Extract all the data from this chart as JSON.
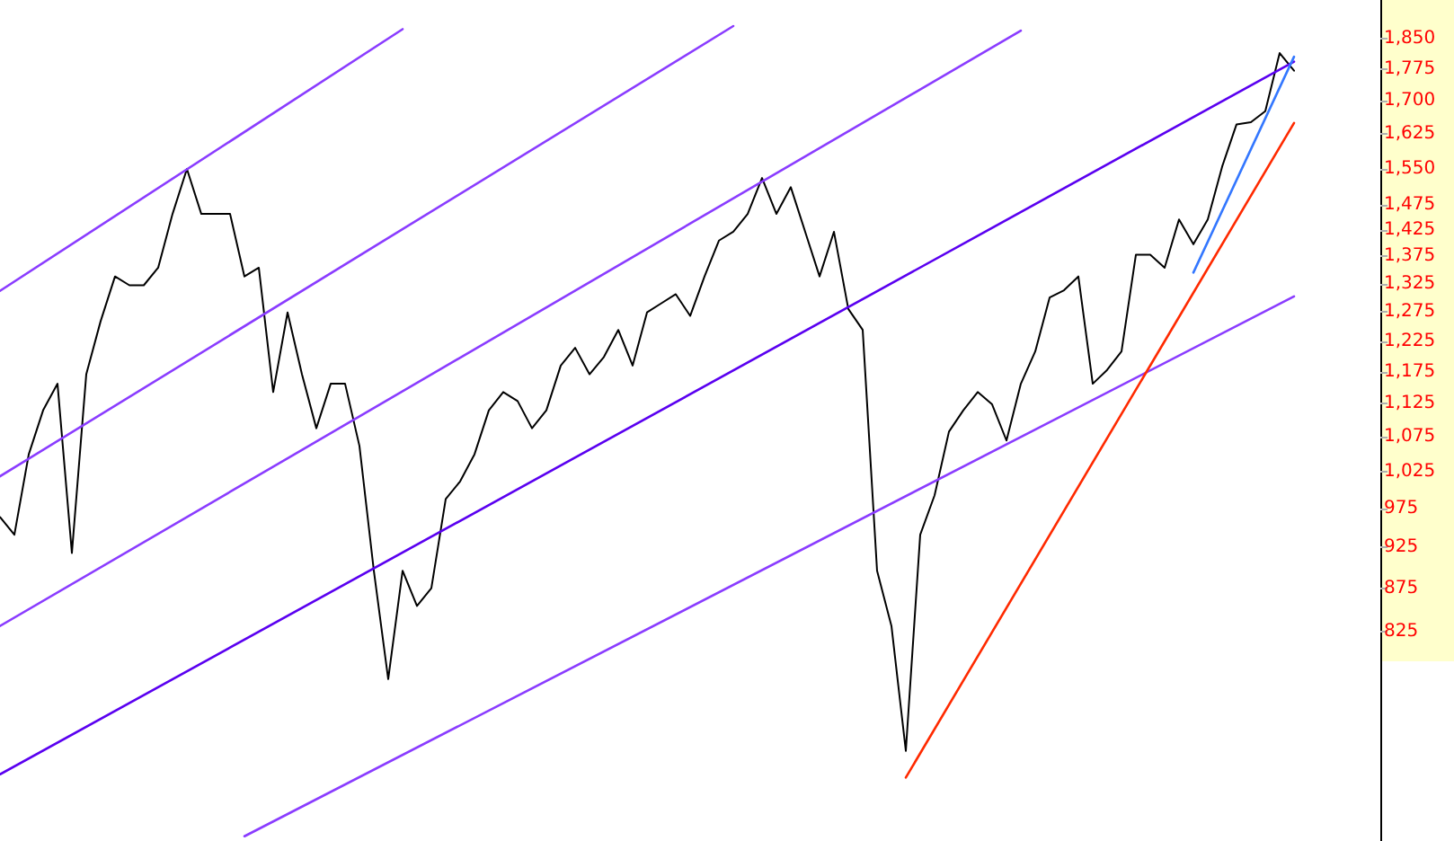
{
  "chart_data": {
    "type": "line",
    "categories": [
      null,
      null,
      null,
      null,
      null,
      null,
      null,
      null,
      null,
      null,
      null,
      null,
      null,
      null,
      null,
      null,
      null,
      null,
      null,
      null,
      null,
      null,
      null,
      null,
      null,
      null,
      null,
      null,
      null,
      null,
      null,
      null,
      null,
      null,
      null,
      null,
      null,
      null,
      null,
      null,
      null,
      null,
      null,
      null,
      null,
      null,
      null,
      null,
      null,
      null,
      null,
      null,
      null,
      null,
      null,
      null,
      null,
      null,
      null,
      null,
      null,
      null,
      null,
      null,
      null,
      null,
      null,
      null,
      null,
      null,
      null,
      null,
      null,
      null,
      null,
      null,
      null,
      null,
      null,
      null,
      null,
      null,
      null,
      null,
      null,
      null,
      null,
      null,
      null,
      null,
      null
    ],
    "series": [
      {
        "color": "#000000",
        "values": [
          964,
          941,
          1050,
          1115,
          1156,
          918,
          1171,
          1259,
          1338,
          1322,
          1322,
          1354,
          1457,
          1549,
          1457,
          1457,
          1457,
          1338,
          1354,
          1143,
          1274,
          1171,
          1088,
          1156,
          1156,
          1062,
          896,
          773,
          896,
          854,
          875,
          988,
          1012,
          1050,
          1115,
          1143,
          1129,
          1088,
          1115,
          1185,
          1214,
          1171,
          1199,
          1244,
          1185,
          1274,
          1290,
          1306,
          1268,
          1338,
          1405,
          1422,
          1457,
          1530,
          1457,
          1511,
          1422,
          1338,
          1422,
          1280,
          1244,
          896,
          831,
          701,
          941,
          993,
          1083,
          1115,
          1143,
          1124,
          1070,
          1156,
          1208,
          1300,
          1313,
          1338,
          1156,
          1178,
          1208,
          1378,
          1378,
          1354,
          1446,
          1398,
          1446,
          1554,
          1646,
          1651,
          1676,
          1814,
          1771
        ]
      },
      {
        "color": "#8a3cff",
        "values": [
          1312,
          null,
          null,
          null,
          null,
          null,
          null,
          null,
          null,
          null,
          null,
          null,
          null,
          null,
          null,
          null,
          null,
          null,
          null,
          null,
          null,
          null,
          null,
          null,
          null,
          null,
          null,
          null,
          1874,
          null,
          null,
          null,
          null,
          null,
          null,
          null,
          null,
          null,
          null,
          null,
          null,
          null,
          null,
          null,
          null,
          null,
          null,
          null,
          null,
          null,
          null,
          null,
          null,
          null,
          null,
          null,
          null,
          null,
          null,
          null,
          null,
          null,
          null,
          null,
          null,
          null,
          null,
          null,
          null,
          null,
          null,
          null,
          null,
          null,
          null,
          null,
          null,
          null,
          null,
          null,
          null,
          null,
          null,
          null,
          null,
          null,
          null,
          null,
          null,
          null,
          null
        ]
      },
      {
        "color": "#8a3cff",
        "values": [
          1019,
          null,
          null,
          null,
          null,
          null,
          null,
          null,
          null,
          null,
          null,
          null,
          null,
          null,
          null,
          null,
          null,
          null,
          null,
          null,
          null,
          null,
          null,
          null,
          null,
          null,
          null,
          null,
          null,
          null,
          null,
          null,
          null,
          null,
          null,
          null,
          null,
          null,
          null,
          null,
          null,
          null,
          null,
          null,
          null,
          null,
          null,
          null,
          null,
          null,
          null,
          1882,
          null,
          null,
          null,
          null,
          null,
          null,
          null,
          null,
          null,
          null,
          null,
          null,
          null,
          null,
          null,
          null,
          null,
          null,
          null,
          null,
          null,
          null,
          null,
          null,
          null,
          null,
          null,
          null,
          null,
          null,
          null,
          null,
          null,
          null,
          null,
          null,
          null,
          null,
          null
        ]
      },
      {
        "color": "#8a3cff",
        "values": [
          831,
          null,
          null,
          null,
          null,
          null,
          null,
          null,
          null,
          null,
          null,
          null,
          null,
          null,
          null,
          null,
          null,
          null,
          null,
          null,
          null,
          null,
          null,
          null,
          null,
          null,
          null,
          null,
          null,
          null,
          null,
          null,
          null,
          null,
          null,
          null,
          null,
          null,
          null,
          null,
          null,
          null,
          null,
          null,
          null,
          null,
          null,
          null,
          null,
          null,
          null,
          null,
          null,
          null,
          null,
          null,
          null,
          null,
          null,
          null,
          null,
          null,
          null,
          null,
          null,
          null,
          null,
          null,
          null,
          null,
          null,
          1870,
          null,
          null,
          null,
          null,
          null,
          null,
          null,
          null,
          null,
          null,
          null,
          null,
          null,
          null,
          null,
          null,
          null,
          null,
          null
        ]
      },
      {
        "color": "#5a00f0",
        "values": [
          679,
          null,
          null,
          null,
          null,
          null,
          null,
          null,
          null,
          null,
          null,
          null,
          null,
          null,
          null,
          null,
          null,
          null,
          null,
          null,
          null,
          null,
          null,
          null,
          null,
          null,
          null,
          null,
          null,
          null,
          null,
          null,
          null,
          null,
          null,
          null,
          null,
          null,
          null,
          null,
          null,
          null,
          null,
          null,
          null,
          null,
          null,
          null,
          null,
          null,
          null,
          null,
          null,
          null,
          null,
          null,
          null,
          null,
          null,
          null,
          null,
          null,
          null,
          null,
          null,
          null,
          null,
          null,
          null,
          null,
          null,
          null,
          null,
          null,
          null,
          null,
          null,
          null,
          null,
          null,
          null,
          null,
          null,
          null,
          null,
          null,
          null,
          null,
          null,
          null,
          1793
        ]
      },
      {
        "color": "#8a3cff",
        "values": [
          null,
          null,
          null,
          null,
          null,
          null,
          null,
          null,
          null,
          null,
          null,
          null,
          null,
          null,
          null,
          null,
          null,
          624,
          null,
          null,
          null,
          null,
          null,
          null,
          null,
          null,
          null,
          null,
          null,
          null,
          null,
          null,
          null,
          null,
          null,
          null,
          null,
          null,
          null,
          null,
          null,
          null,
          null,
          null,
          null,
          null,
          null,
          null,
          null,
          null,
          null,
          null,
          null,
          null,
          null,
          null,
          null,
          null,
          null,
          null,
          null,
          null,
          null,
          null,
          null,
          null,
          null,
          null,
          null,
          null,
          null,
          null,
          null,
          null,
          null,
          null,
          null,
          null,
          null,
          null,
          null,
          null,
          null,
          null,
          null,
          null,
          null,
          null,
          null,
          null,
          1302
        ]
      },
      {
        "color": "#ff2a00",
        "values": [
          null,
          null,
          null,
          null,
          null,
          null,
          null,
          null,
          null,
          null,
          null,
          null,
          null,
          null,
          null,
          null,
          null,
          null,
          null,
          null,
          null,
          null,
          null,
          null,
          null,
          null,
          null,
          null,
          null,
          null,
          null,
          null,
          null,
          null,
          null,
          null,
          null,
          null,
          null,
          null,
          null,
          null,
          null,
          null,
          null,
          null,
          null,
          null,
          null,
          null,
          null,
          null,
          null,
          null,
          null,
          null,
          null,
          null,
          null,
          null,
          null,
          null,
          null,
          676,
          null,
          null,
          null,
          null,
          null,
          null,
          null,
          null,
          null,
          null,
          null,
          null,
          null,
          null,
          null,
          null,
          null,
          null,
          null,
          null,
          null,
          null,
          null,
          null,
          null,
          null,
          1649
        ]
      },
      {
        "color": "#3377ff",
        "values": [
          null,
          null,
          null,
          null,
          null,
          null,
          null,
          null,
          null,
          null,
          null,
          null,
          null,
          null,
          null,
          null,
          null,
          null,
          null,
          null,
          null,
          null,
          null,
          null,
          null,
          null,
          null,
          null,
          null,
          null,
          null,
          null,
          null,
          null,
          null,
          null,
          null,
          null,
          null,
          null,
          null,
          null,
          null,
          null,
          null,
          null,
          null,
          null,
          null,
          null,
          null,
          null,
          null,
          null,
          null,
          null,
          null,
          null,
          null,
          null,
          null,
          null,
          null,
          null,
          null,
          null,
          null,
          null,
          null,
          null,
          null,
          null,
          null,
          null,
          null,
          null,
          null,
          null,
          null,
          null,
          null,
          null,
          null,
          1345,
          null,
          null,
          null,
          null,
          null,
          null,
          1805
        ]
      }
    ],
    "log": true,
    "ylim": [
      620,
      1950
    ],
    "yticks": [
      {
        "value": 1850,
        "label": "1,850"
      },
      {
        "value": 1775,
        "label": "1,775"
      },
      {
        "value": 1700,
        "label": "1,700"
      },
      {
        "value": 1625,
        "label": "1,625"
      },
      {
        "value": 1550,
        "label": "1,550"
      },
      {
        "value": 1475,
        "label": "1,475"
      },
      {
        "value": 1425,
        "label": "1,425"
      },
      {
        "value": 1375,
        "label": "1,375"
      },
      {
        "value": 1325,
        "label": "1,325"
      },
      {
        "value": 1275,
        "label": "1,275"
      },
      {
        "value": 1225,
        "label": "1,225"
      },
      {
        "value": 1175,
        "label": "1,175"
      },
      {
        "value": 1125,
        "label": "1,125"
      },
      {
        "value": 1075,
        "label": "1,075"
      },
      {
        "value": 1025,
        "label": "1,025"
      },
      975,
      925,
      875,
      825
    ],
    "tick_labels": "y",
    "grid": false
  }
}
